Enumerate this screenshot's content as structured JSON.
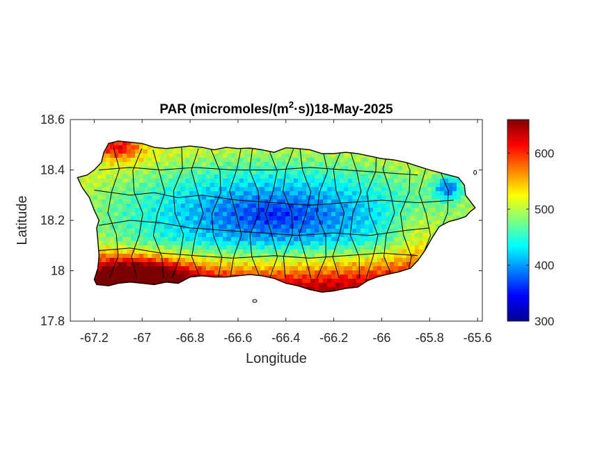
{
  "map": {
    "title_prefix": "PAR (micromoles/(m",
    "title_exponent": "2",
    "title_suffix": "·s))18-May-2025",
    "xlabel": "Longitude",
    "ylabel": "Latitude",
    "xlim": [
      -67.3,
      -65.58
    ],
    "ylim": [
      17.8,
      18.6
    ],
    "xticks": [
      -67.2,
      -67,
      -66.8,
      -66.6,
      -66.4,
      -66.2,
      -66,
      -65.8,
      -65.6
    ],
    "xtick_labels": [
      "-67.2",
      "-67",
      "-66.8",
      "-66.6",
      "-66.4",
      "-66.2",
      "-66",
      "-65.8",
      "-65.6"
    ],
    "yticks": [
      17.8,
      18,
      18.2,
      18.4,
      18.6
    ],
    "ytick_labels": [
      "17.8",
      "18",
      "18.2",
      "18.4",
      "18.6"
    ],
    "colormap": "jet",
    "colorbar": {
      "range": [
        300,
        660
      ],
      "ticks": [
        300,
        400,
        500,
        600
      ],
      "tick_labels": [
        "300",
        "400",
        "500",
        "600"
      ]
    },
    "field_notes": {
      "low_values_region": "central mountains",
      "high_values_region": "south-west coast"
    }
  }
}
